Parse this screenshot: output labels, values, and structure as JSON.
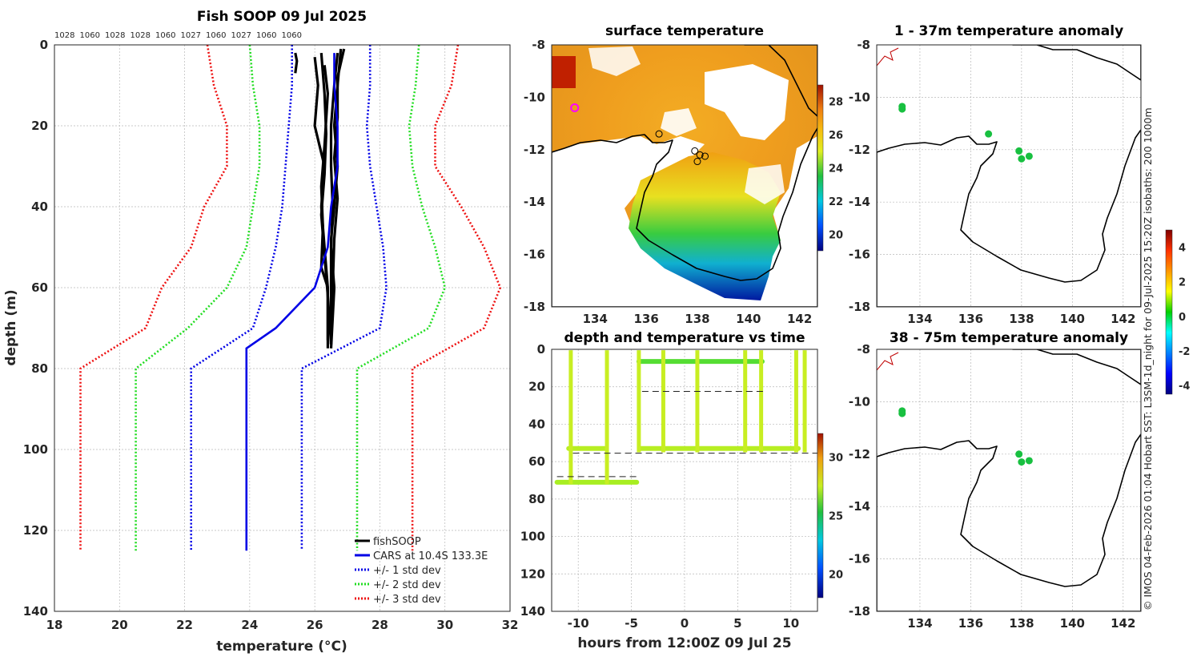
{
  "figure": {
    "copyright": "© IMOS 04-Feb-2026 01:04 Hobart SST: L3SM-1d_night for 09-Jul-2025 15:20Z isobaths: 200  1000m"
  },
  "colors": {
    "fish": "#000000",
    "cars": "#0000e6",
    "sd1": "#0000e6",
    "sd2": "#22dd22",
    "sd3": "#ee1111",
    "land": "#f8c89a",
    "anomaly_dot": "#18c040",
    "scatter": "#b7ee22"
  },
  "chart_data": [
    {
      "id": "profile",
      "type": "line",
      "title": "Fish SOOP 09 Jul 2025",
      "xlabel": "temperature (°C)",
      "ylabel": "depth (m)",
      "xlim": [
        18,
        32
      ],
      "ylim": [
        0,
        140
      ],
      "xticks": [
        "18",
        "20",
        "22",
        "24",
        "26",
        "28",
        "30",
        "32"
      ],
      "yticks": [
        "0",
        "20",
        "40",
        "60",
        "80",
        "100",
        "120",
        "140"
      ],
      "top_labels": [
        "1028",
        "1060",
        "1028",
        "1028",
        "1060",
        "1027",
        "1060",
        "1027",
        "1060",
        "1060"
      ],
      "legend_location": "bottom-right",
      "series": [
        {
          "name": "fishSOOP",
          "style": "solid-thick",
          "color": "#000000",
          "tracks": [
            {
              "x": [
                26.7,
                26.6,
                26.5,
                26.5,
                26.55,
                26.5,
                26.6,
                26.5
              ],
              "y": [
                2,
                10,
                20,
                30,
                40,
                50,
                60,
                75
              ]
            },
            {
              "x": [
                26.0,
                26.1,
                26.0,
                26.3,
                26.2,
                26.3,
                26.4,
                26.4
              ],
              "y": [
                3,
                10,
                20,
                30,
                40,
                50,
                60,
                75
              ]
            },
            {
              "x": [
                26.8,
                26.7,
                26.6,
                26.7,
                26.6,
                26.5,
                26.5,
                26.5
              ],
              "y": [
                1,
                10,
                20,
                30,
                40,
                48,
                60,
                74
              ]
            },
            {
              "x": [
                26.3,
                26.4,
                26.3,
                26.2,
                26.25,
                26.2,
                26.4,
                26.4
              ],
              "y": [
                5,
                12,
                25,
                35,
                45,
                55,
                60,
                73
              ]
            },
            {
              "x": [
                26.9,
                26.7,
                26.7,
                26.6,
                26.7,
                26.6,
                26.55,
                26.5
              ],
              "y": [
                1,
                8,
                18,
                28,
                38,
                48,
                60,
                74
              ]
            },
            {
              "x": [
                26.2,
                26.3,
                26.35,
                26.3,
                26.2,
                26.3,
                26.4,
                26.5
              ],
              "y": [
                2,
                12,
                22,
                32,
                42,
                52,
                62,
                74
              ]
            },
            {
              "x": [
                25.4,
                25.45,
                25.4
              ],
              "y": [
                2,
                4,
                7
              ]
            }
          ]
        },
        {
          "name": "CARS at 10.4S 133.3E",
          "style": "solid",
          "color": "#0000e6",
          "x": [
            26.6,
            26.6,
            26.7,
            26.7,
            26.5,
            26.4,
            26.0,
            24.8,
            23.9,
            23.9,
            23.9
          ],
          "y": [
            2,
            10,
            20,
            30,
            40,
            50,
            60,
            70,
            75,
            80,
            125
          ]
        },
        {
          "name": "+/- 1 std dev",
          "style": "dotted",
          "color": "#0000e6",
          "x": [
            25.3,
            25.3,
            25.2,
            25.1,
            25.0,
            24.8,
            24.5,
            24.1,
            22.2,
            22.2,
            22.2
          ],
          "y": [
            0,
            10,
            20,
            30,
            40,
            50,
            60,
            70,
            80,
            100,
            125
          ],
          "x2": [
            27.7,
            27.7,
            27.6,
            27.7,
            27.9,
            28.1,
            28.2,
            28.0,
            25.6,
            25.6,
            25.6
          ],
          "y2": [
            0,
            10,
            20,
            30,
            40,
            50,
            60,
            70,
            80,
            100,
            125
          ]
        },
        {
          "name": "+/- 2 std dev",
          "style": "dotted",
          "color": "#22dd22",
          "x": [
            24.0,
            24.1,
            24.3,
            24.3,
            24.1,
            23.9,
            23.3,
            22.1,
            20.5,
            20.5,
            20.5
          ],
          "y": [
            0,
            10,
            20,
            30,
            40,
            50,
            60,
            70,
            80,
            100,
            125
          ],
          "x2": [
            29.2,
            29.1,
            28.9,
            29.0,
            29.3,
            29.7,
            30.0,
            29.5,
            27.3,
            27.3,
            27.3
          ],
          "y2": [
            0,
            10,
            20,
            30,
            40,
            50,
            60,
            70,
            80,
            100,
            125
          ]
        },
        {
          "name": "+/- 3 std dev",
          "style": "dotted",
          "color": "#ee1111",
          "x": [
            22.7,
            22.9,
            23.3,
            23.3,
            22.6,
            22.2,
            21.3,
            20.8,
            18.8,
            18.8,
            18.8
          ],
          "y": [
            0,
            10,
            20,
            30,
            40,
            50,
            60,
            70,
            80,
            100,
            125
          ],
          "x2": [
            30.4,
            30.2,
            29.7,
            29.7,
            30.5,
            31.2,
            31.7,
            31.2,
            29.0,
            29.0,
            29.0
          ],
          "y2": [
            0,
            10,
            20,
            30,
            40,
            50,
            60,
            70,
            80,
            100,
            125
          ]
        }
      ]
    },
    {
      "id": "sst",
      "type": "heatmap",
      "title": "surface temperature",
      "xlim": [
        132.3,
        142.7
      ],
      "ylim": [
        -18,
        -8
      ],
      "xticks": [
        "134",
        "136",
        "138",
        "140",
        "142"
      ],
      "yticks": [
        "-8",
        "-10",
        "-12",
        "-14",
        "-16",
        "-18"
      ],
      "colorbar": {
        "min": 19,
        "max": 29,
        "ticks": [
          "28",
          "26",
          "24",
          "22",
          "20"
        ]
      },
      "markers": [
        {
          "lon": 133.2,
          "lat": -10.4,
          "type": "circle",
          "color": "#ff00ff"
        },
        {
          "lon": 136.5,
          "lat": -11.4,
          "type": "circle",
          "color": "#000000"
        },
        {
          "lon": 137.9,
          "lat": -12.05,
          "type": "circle",
          "color": "#000000"
        },
        {
          "lon": 138.1,
          "lat": -12.2,
          "type": "circle",
          "color": "#000000"
        },
        {
          "lon": 138.3,
          "lat": -12.25,
          "type": "circle",
          "color": "#000000"
        },
        {
          "lon": 138.0,
          "lat": -12.45,
          "type": "circle",
          "color": "#000000"
        }
      ]
    },
    {
      "id": "timeseries",
      "type": "scatter",
      "title": "depth and temperature vs time",
      "xlabel": "hours from 12:00Z 09 Jul 25",
      "xlim": [
        -12.5,
        12.5
      ],
      "ylim": [
        0,
        140
      ],
      "xticks": [
        "-10",
        "-5",
        "0",
        "5",
        "10"
      ],
      "yticks": [
        "0",
        "20",
        "40",
        "60",
        "80",
        "100",
        "120",
        "140"
      ],
      "colorbar": {
        "min": 18,
        "max": 32,
        "ticks": [
          "30",
          "25",
          "20"
        ]
      },
      "segments": [
        {
          "t0": -12.0,
          "t1": -4.5,
          "depth": 71
        },
        {
          "t0": -10.9,
          "t1": -7.5,
          "depth": 53
        },
        {
          "t0": -4.2,
          "t1": 7.2,
          "depth": 53
        },
        {
          "t0": -4.3,
          "t1": 7.3,
          "depth": 6.5
        },
        {
          "t0": 7.4,
          "t1": 10.7,
          "depth": 53
        }
      ],
      "verticals": [
        -10.7,
        -7.3,
        -4.3,
        -2.0,
        1.2,
        5.7,
        7.2,
        10.5,
        11.3
      ],
      "dashed": [
        {
          "t0": -12.0,
          "t1": -4.2,
          "depth": 68
        },
        {
          "t0": -10.5,
          "t1": 12.5,
          "depth": 55.5
        },
        {
          "t0": -4.0,
          "t1": 7.5,
          "depth": 22.5
        }
      ]
    },
    {
      "id": "anom1",
      "type": "heatmap",
      "title": "1 - 37m temperature anomaly",
      "xlim": [
        132.3,
        142.7
      ],
      "ylim": [
        -18,
        -8
      ],
      "xticks": [
        "134",
        "136",
        "138",
        "140",
        "142"
      ],
      "yticks": [
        "-8",
        "-10",
        "-12",
        "-14",
        "-16",
        "-18"
      ],
      "colorbar": {
        "min": -4.5,
        "max": 5,
        "ticks": [
          "4",
          "2",
          "0",
          "-2",
          "-4"
        ]
      },
      "points": [
        {
          "lon": 133.3,
          "lat": -10.35,
          "anomaly": 0.4
        },
        {
          "lon": 133.3,
          "lat": -10.45,
          "anomaly": 0.4
        },
        {
          "lon": 136.7,
          "lat": -11.4,
          "anomaly": 0.3
        },
        {
          "lon": 137.9,
          "lat": -12.05,
          "anomaly": 0.3
        },
        {
          "lon": 138.0,
          "lat": -12.35,
          "anomaly": 0.3
        },
        {
          "lon": 138.3,
          "lat": -12.25,
          "anomaly": 0.3
        }
      ]
    },
    {
      "id": "anom2",
      "type": "heatmap",
      "title": "38 - 75m temperature anomaly",
      "xlim": [
        132.3,
        142.7
      ],
      "ylim": [
        -18,
        -8
      ],
      "xticks": [
        "134",
        "136",
        "138",
        "140",
        "142"
      ],
      "yticks": [
        "-8",
        "-10",
        "-12",
        "-14",
        "-16",
        "-18"
      ],
      "points": [
        {
          "lon": 133.3,
          "lat": -10.35,
          "anomaly": 0.4
        },
        {
          "lon": 133.3,
          "lat": -10.45,
          "anomaly": 0.4
        },
        {
          "lon": 137.9,
          "lat": -12.0,
          "anomaly": 0.3
        },
        {
          "lon": 138.0,
          "lat": -12.3,
          "anomaly": 0.3
        },
        {
          "lon": 138.3,
          "lat": -12.25,
          "anomaly": 0.3
        }
      ]
    }
  ]
}
